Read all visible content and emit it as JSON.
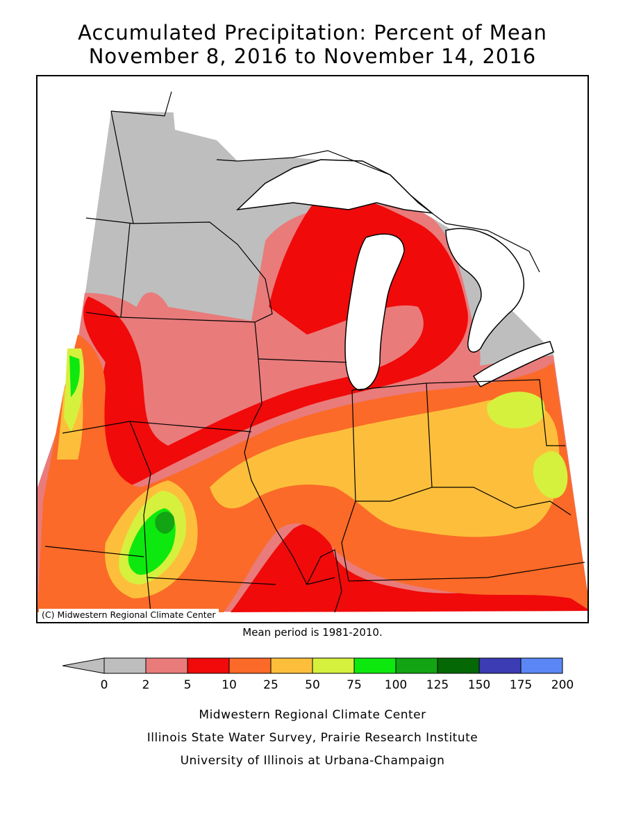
{
  "title": {
    "line1": "Accumulated Precipitation: Percent of Mean",
    "line2": "November 8, 2016 to November 14, 2016"
  },
  "map": {
    "region": "Midwest United States",
    "credit": "(C) Midwestern Regional Climate Center",
    "mean_period": "Mean period is 1981-2010.",
    "land_background_color": "#bebebe",
    "lake_color": "#ffffff"
  },
  "legend": {
    "unit": "percent of mean",
    "tick_labels": [
      "0",
      "2",
      "5",
      "10",
      "25",
      "50",
      "75",
      "100",
      "125",
      "150",
      "175",
      "200"
    ],
    "under_color": "#bebebe",
    "bins": [
      {
        "from": 0,
        "to": 2,
        "color": "#bebebe"
      },
      {
        "from": 2,
        "to": 5,
        "color": "#e97b7b"
      },
      {
        "from": 5,
        "to": 10,
        "color": "#f00a0a"
      },
      {
        "from": 10,
        "to": 25,
        "color": "#fb6a28"
      },
      {
        "from": 25,
        "to": 50,
        "color": "#fdbf3b"
      },
      {
        "from": 50,
        "to": 75,
        "color": "#d6f03e"
      },
      {
        "from": 75,
        "to": 100,
        "color": "#0de90e"
      },
      {
        "from": 100,
        "to": 125,
        "color": "#12a412"
      },
      {
        "from": 125,
        "to": 150,
        "color": "#046904"
      },
      {
        "from": 150,
        "to": 175,
        "color": "#3c3cb4"
      },
      {
        "from": 175,
        "to": 200,
        "color": "#5a87f5"
      }
    ]
  },
  "footer": {
    "line1": "Midwestern Regional Climate Center",
    "line2": "Illinois State Water Survey, Prairie Research Institute",
    "line3": "University of Illinois at Urbana-Champaign"
  }
}
